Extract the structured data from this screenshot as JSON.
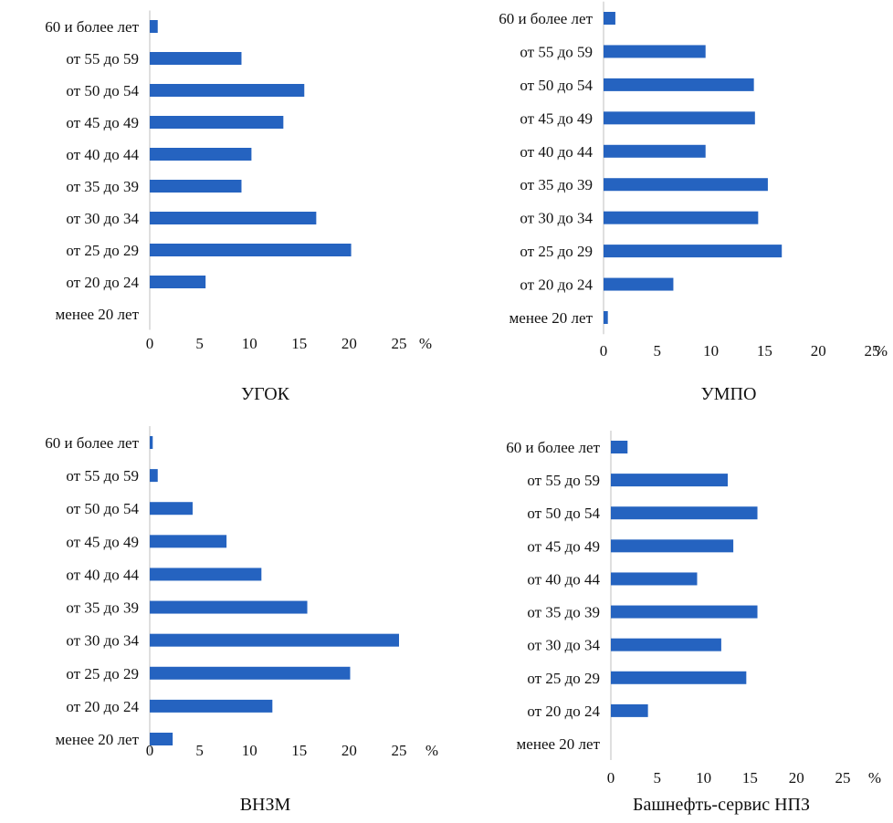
{
  "chart_data": [
    {
      "type": "bar",
      "orientation": "horizontal",
      "title": "УГОК",
      "unit": "%",
      "categories": [
        "60 и более лет",
        "от 55 до 59",
        "от 50 до 54",
        "от 45 до 49",
        "от 40 до 44",
        "от 35 до 39",
        "от 30 до 34",
        "от 25 до 29",
        "от 20 до 24",
        "менее 20 лет"
      ],
      "values": [
        0.8,
        9.2,
        15.5,
        13.4,
        10.2,
        9.2,
        16.7,
        20.2,
        5.6,
        0
      ],
      "xlim": [
        0,
        25
      ],
      "xticks": [
        "0",
        "5",
        "10",
        "15",
        "20",
        "25"
      ],
      "bar_color": "#2563c0"
    },
    {
      "type": "bar",
      "orientation": "horizontal",
      "title": "УМПО",
      "unit": "%",
      "categories": [
        "60 и более лет",
        "от 55 до 59",
        "от 50 до 54",
        "от 45 до 49",
        "от 40 до 44",
        "от 35 до 39",
        "от 30 до 34",
        "от 25 до 29",
        "от 20 до 24",
        "менее 20 лет"
      ],
      "values": [
        1.1,
        9.5,
        14.0,
        14.1,
        9.5,
        15.3,
        14.4,
        16.6,
        6.5,
        0.4
      ],
      "xlim": [
        0,
        25
      ],
      "xticks": [
        "0",
        "5",
        "10",
        "15",
        "20",
        "25"
      ],
      "bar_color": "#2563c0"
    },
    {
      "type": "bar",
      "orientation": "horizontal",
      "title": "ВНЗМ",
      "unit": "%",
      "categories": [
        "60 и более лет",
        "от 55 до 59",
        "от 50 до 54",
        "от 45 до 49",
        "от 40 до 44",
        "от 35 до 39",
        "от 30 до 34",
        "от 25 до 29",
        "от 20 до 24",
        "менее 20 лет"
      ],
      "values": [
        0.3,
        0.8,
        4.3,
        7.7,
        11.2,
        15.8,
        25.0,
        20.1,
        12.3,
        2.3
      ],
      "xlim": [
        0,
        25
      ],
      "xticks": [
        "0",
        "5",
        "10",
        "15",
        "20",
        "25"
      ],
      "bar_color": "#2563c0"
    },
    {
      "type": "bar",
      "orientation": "horizontal",
      "title": "Башнефть-сервис НПЗ",
      "unit": "%",
      "categories": [
        "60 и более лет",
        "от 55 до 59",
        "от 50 до 54",
        "от 45 до 49",
        "от 40 до 44",
        "от 35 до 39",
        "от 30 до 34",
        "от 25 до 29",
        "от 20 до 24",
        "менее 20 лет"
      ],
      "values": [
        1.8,
        12.6,
        15.8,
        13.2,
        9.3,
        15.8,
        11.9,
        14.6,
        4.0,
        0
      ],
      "xlim": [
        0,
        25
      ],
      "xticks": [
        "0",
        "5",
        "10",
        "15",
        "20",
        "25"
      ],
      "bar_color": "#2563c0"
    }
  ]
}
